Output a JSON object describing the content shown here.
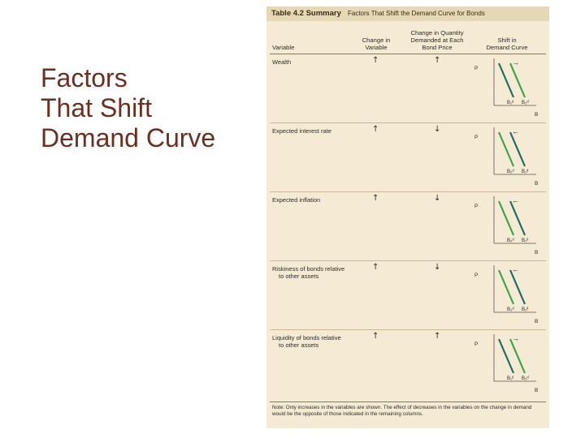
{
  "slide": {
    "title_lines": [
      "Factors",
      "That Shift",
      "Demand Curve"
    ]
  },
  "table": {
    "number": "Table 4.2 Summary",
    "name": "Factors That Shift the Demand Curve for Bonds",
    "headers": {
      "variable": "Variable",
      "change_variable": [
        "Change in",
        "Variable"
      ],
      "change_quantity": [
        "Change in Quantity",
        "Demanded at Each",
        "Bond Price"
      ],
      "shift": [
        "Shift in",
        "Demand Curve"
      ]
    },
    "rows": [
      {
        "variable": [
          "Wealth"
        ],
        "change": "↑",
        "quantity": "↑",
        "shift_arrow": "→",
        "labels": [
          "B₁ᵈ",
          "B₂ᵈ"
        ],
        "axis_y": "P",
        "axis_x": "B",
        "colors": [
          "#1e6e62",
          "#3fa34a"
        ]
      },
      {
        "variable": [
          "Expected interest rate"
        ],
        "change": "↑",
        "quantity": "↓",
        "shift_arrow": "←",
        "labels": [
          "B₂ᵈ",
          "B₁ᵈ"
        ],
        "axis_y": "P",
        "axis_x": "B",
        "colors": [
          "#3fa34a",
          "#1e6e62"
        ]
      },
      {
        "variable": [
          "Expected inflation"
        ],
        "change": "↑",
        "quantity": "↓",
        "shift_arrow": "←",
        "labels": [
          "B₂ᵈ",
          "B₁ᵈ"
        ],
        "axis_y": "P",
        "axis_x": "B",
        "colors": [
          "#3fa34a",
          "#1e6e62"
        ]
      },
      {
        "variable": [
          "Riskiness of bonds relative",
          "to other assets"
        ],
        "change": "↑",
        "quantity": "↓",
        "shift_arrow": "←",
        "labels": [
          "B₂ᵈ",
          "B₁ᵈ"
        ],
        "axis_y": "P",
        "axis_x": "B",
        "colors": [
          "#3fa34a",
          "#1e6e62"
        ]
      },
      {
        "variable": [
          "Liquidity of bonds relative",
          "to other assets"
        ],
        "change": "↑",
        "quantity": "↑",
        "shift_arrow": "→",
        "labels": [
          "B₁ᵈ",
          "B₂ᵈ"
        ],
        "axis_y": "P",
        "axis_x": "B",
        "colors": [
          "#1e6e62",
          "#3fa34a"
        ]
      }
    ],
    "note": "Note: Only increases in the variables are shown. The effect of decreases in the variables on the change in demand would be the opposite of those indicated in the remaining columns."
  }
}
